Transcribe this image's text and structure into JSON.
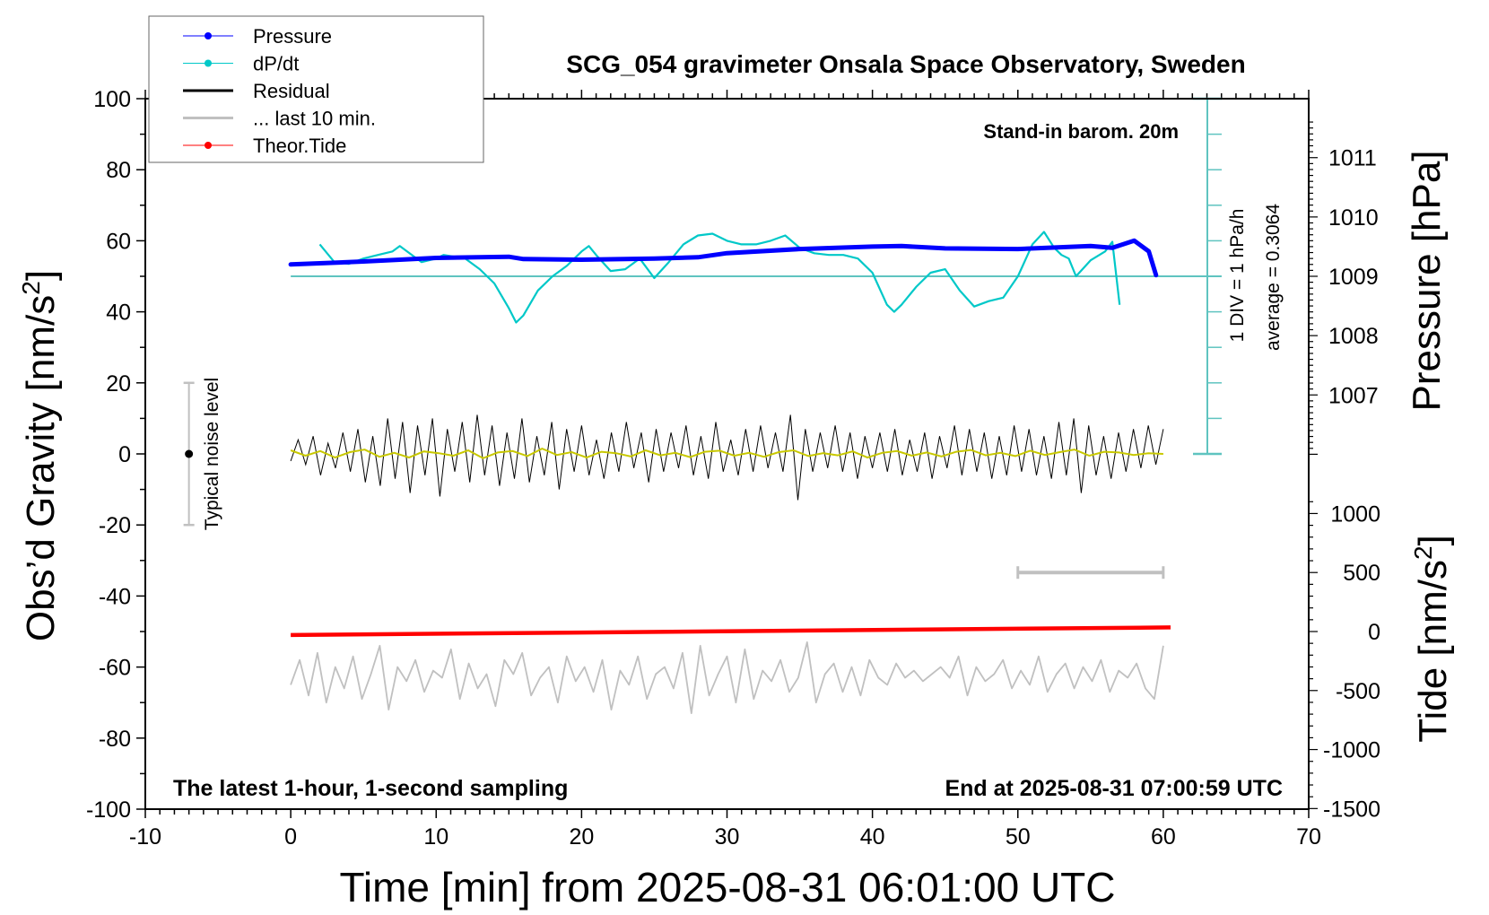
{
  "chart_data": {
    "type": "line",
    "title": "SCG_054 gravimeter Onsala Space Observatory, Sweden",
    "subtitle_top_right": "Stand-in barom. 20m",
    "note_bottom_left": "The latest 1-hour, 1-second sampling",
    "note_bottom_right": "End at 2025-08-31 07:00:59 UTC",
    "xlabel": "Time [min] from 2025-08-31 06:01:00 UTC",
    "ylabel_left": "Obs’d Gravity [nm/s",
    "ylabel_left_sup": "2",
    "ylabel_left_end": "]",
    "ylabel_right_pressure": "Pressure [hPa]",
    "ylabel_right_tide": "Tide [nm/s",
    "ylabel_right_tide_sup": "2",
    "ylabel_right_tide_end": "]",
    "xlim": [
      -10,
      70
    ],
    "ylim": [
      -100,
      100
    ],
    "x_ticks": [
      "-10",
      "0",
      "10",
      "20",
      "30",
      "40",
      "50",
      "60",
      "70"
    ],
    "y_ticks": [
      "100",
      "80",
      "60",
      "40",
      "20",
      "0",
      "-20",
      "-40",
      "-60",
      "-80",
      "-100"
    ],
    "pressure_ticks": [
      "1011",
      "1010",
      "1009",
      "1008",
      "1007"
    ],
    "tide_ticks": [
      "1000",
      "500",
      "0",
      "-500",
      "-1000",
      "-1500"
    ],
    "dpdt_scale_label": "1 DIV = 1 hPa/h",
    "dpdt_average_label": "average = 0.3064",
    "noise_label": "Typical noise level",
    "noise_level": {
      "x": -7,
      "center": 0,
      "half_range": 20
    },
    "last10_bar": {
      "from": 50,
      "to": 60,
      "tide_level": 500
    },
    "legend": {
      "placement": "top-left",
      "entries": [
        {
          "label": "Pressure",
          "color": "#0000ff",
          "marker": true
        },
        {
          "label": "dP/dt",
          "color": "#00c8c8",
          "marker": true
        },
        {
          "label": "Residual",
          "color": "#000000",
          "marker": false
        },
        {
          "label": "... last 10 min.",
          "color": "#c0c0c0",
          "marker": false
        },
        {
          "label": "Theor.Tide",
          "color": "#ff0000",
          "marker": true
        }
      ]
    },
    "colors": {
      "pressure": "#0000ff",
      "dpdt": "#00c8c8",
      "dpdt_axis": "#5fc4c0",
      "residual": "#000000",
      "smoothed": "#c8c800",
      "last10": "#c0c0c0",
      "tide": "#ff0000"
    },
    "series": [
      {
        "name": "Pressure",
        "unit": "hPa",
        "x": [
          0,
          5,
          10,
          15,
          16,
          20,
          25,
          28,
          30,
          35,
          40,
          42,
          45,
          50,
          55,
          56.5,
          58,
          59,
          59.5
        ],
        "y": [
          1009.2,
          1009.25,
          1009.31,
          1009.33,
          1009.29,
          1009.28,
          1009.3,
          1009.32,
          1009.39,
          1009.46,
          1009.5,
          1009.51,
          1009.47,
          1009.46,
          1009.51,
          1009.48,
          1009.6,
          1009.42,
          1009.02
        ]
      },
      {
        "name": "dP/dt",
        "unit": "DIV (hPa/h)",
        "baseline_pressure": 1009,
        "x": [
          2,
          3,
          4,
          5,
          6,
          7,
          7.5,
          8,
          9,
          10,
          10.5,
          12,
          13,
          14,
          15,
          15.5,
          16,
          17,
          18,
          19,
          20,
          20.5,
          21,
          22,
          23,
          24,
          25,
          26,
          27,
          28,
          29,
          30,
          31,
          32,
          33,
          34,
          35,
          36,
          37,
          38,
          39,
          40,
          41,
          41.5,
          42,
          43,
          44,
          45,
          46,
          47,
          48,
          49,
          50,
          51,
          51.8,
          52.5,
          53,
          53.5,
          54,
          55,
          56,
          56.5,
          57
        ],
        "y": [
          0.9,
          0.4,
          0.35,
          0.5,
          0.6,
          0.7,
          0.85,
          0.7,
          0.4,
          0.5,
          0.6,
          0.5,
          0.2,
          -0.2,
          -0.9,
          -1.3,
          -1.1,
          -0.4,
          0,
          0.3,
          0.7,
          0.85,
          0.6,
          0.15,
          0.2,
          0.5,
          -0.05,
          0.4,
          0.9,
          1.15,
          1.2,
          1.0,
          0.9,
          0.9,
          1.0,
          1.15,
          0.8,
          0.65,
          0.6,
          0.6,
          0.5,
          0.1,
          -0.8,
          -1.0,
          -0.8,
          -0.3,
          0.1,
          0.2,
          -0.4,
          -0.85,
          -0.7,
          -0.6,
          0,
          0.9,
          1.25,
          0.8,
          0.6,
          0.5,
          0,
          0.45,
          0.7,
          0.97,
          -0.8
        ]
      },
      {
        "name": "Residual",
        "unit": "nm/s2",
        "x_start": 0,
        "x_end": 60,
        "y": [
          -2,
          4,
          -3,
          5,
          -6,
          3,
          -4,
          6,
          -5,
          7,
          -8,
          5,
          -9,
          10,
          -7,
          9,
          -11,
          8,
          -6,
          10,
          -12,
          7,
          -5,
          9,
          -8,
          11,
          -6,
          8,
          -9,
          6,
          -7,
          10,
          -8,
          5,
          -6,
          9,
          -10,
          7,
          -5,
          8,
          -6,
          4,
          -7,
          6,
          -5,
          9,
          -4,
          6,
          -8,
          7,
          -5,
          6,
          -4,
          8,
          -6,
          5,
          -7,
          9,
          -5,
          4,
          -6,
          7,
          -5,
          8,
          -4,
          6,
          -5,
          11,
          -13,
          7,
          -5,
          6,
          -4,
          8,
          -5,
          6,
          -7,
          5,
          -4,
          6,
          -5,
          7,
          -6,
          4,
          -5,
          6,
          -7,
          5,
          -4,
          8,
          -6,
          7,
          -5,
          6,
          -7,
          5,
          -6,
          8,
          -5,
          7,
          -6,
          5,
          -7,
          9,
          -6,
          10,
          -11,
          8,
          -6,
          5,
          -7,
          6,
          -5,
          7,
          -4,
          8,
          -3,
          7
        ],
        "smoothed": [
          1,
          -0.5,
          0.8,
          -1,
          0.5,
          1.2,
          -0.8,
          0.3,
          -1,
          0.7,
          0.2,
          -0.5,
          1,
          -1.2,
          0.4,
          0.8,
          -0.6,
          1.5,
          -0.3,
          0.5,
          -1,
          0.6,
          0.2,
          -0.7,
          1,
          -0.4,
          0.3,
          -0.9,
          0.6,
          0.9,
          -0.5,
          0.3,
          -0.8,
          0.5,
          1,
          -0.6,
          0.2,
          -0.4,
          0.7,
          -1,
          0.3,
          0.8,
          -0.5,
          0.4,
          -0.7,
          0.6,
          1.1,
          -0.4,
          0.3,
          -0.6,
          0.9,
          -0.3,
          0.5,
          1.2,
          -0.5,
          0.6,
          0.4,
          -0.3,
          0.2,
          0
        ]
      },
      {
        "name": "... last 10 min.",
        "unit": "nm/s2 (display offset)",
        "x_start": 0,
        "x_end": 60,
        "y": [
          -65,
          -58,
          -68,
          -56,
          -70,
          -60,
          -66,
          -57,
          -69,
          -62,
          -54,
          -72,
          -60,
          -64,
          -58,
          -67,
          -61,
          -63,
          -55,
          -69,
          -59,
          -66,
          -62,
          -71,
          -58,
          -62,
          -56,
          -68,
          -63,
          -60,
          -70,
          -57,
          -64,
          -60,
          -67,
          -58,
          -72,
          -61,
          -65,
          -57,
          -69,
          -62,
          -60,
          -66,
          -56,
          -73,
          -54,
          -68,
          -62,
          -57,
          -70,
          -55,
          -69,
          -61,
          -64,
          -58,
          -67,
          -63,
          -53,
          -70,
          -62,
          -59,
          -67,
          -60,
          -68,
          -58,
          -63,
          -65,
          -59,
          -63,
          -61,
          -64,
          -62,
          -60,
          -63,
          -57,
          -68,
          -60,
          -64,
          -62,
          -58,
          -66,
          -61,
          -65,
          -57,
          -67,
          -62,
          -59,
          -66,
          -60,
          -64,
          -58,
          -67,
          -61,
          -63,
          -59,
          -66,
          -69,
          -54
        ]
      },
      {
        "name": "Theor.Tide",
        "unit": "nm/s2",
        "x": [
          0,
          60.5
        ],
        "y": [
          -30,
          35
        ]
      }
    ]
  }
}
